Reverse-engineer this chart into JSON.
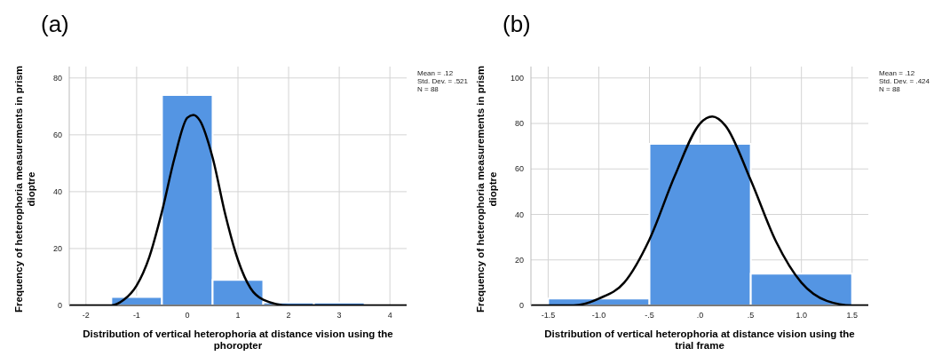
{
  "chart_data": [
    {
      "type": "histogram",
      "title": "(a)",
      "xlabel": "Distribution of vertical heterophoria at distance vision using the phoropter",
      "ylabel": "Frequency of heterophoria measurements in prism dioptre",
      "series": [
        {
          "bins": [
            -1.5,
            -0.5,
            0.5,
            1.5,
            2.5,
            3.5
          ],
          "values": [
            3,
            74,
            9,
            1,
            1
          ],
          "color": "#5495e3"
        },
        {
          "type": "line",
          "color": "#000000",
          "x": [
            -2.33,
            -1.5,
            -1.25,
            -1,
            -0.75,
            -0.5,
            -0.25,
            0,
            0.12,
            0.25,
            0.5,
            0.75,
            1,
            1.25,
            1.5,
            2,
            4.33
          ],
          "values": [
            0,
            0,
            2,
            7,
            17,
            33,
            52,
            66,
            67,
            65,
            52,
            32,
            16,
            6,
            2,
            0,
            0
          ]
        }
      ],
      "xlim": [
        -2.33,
        4.33
      ],
      "xticks": [
        -2,
        -1,
        0,
        1,
        2,
        3,
        4
      ],
      "ylim": [
        0,
        84
      ],
      "yticks": [
        0,
        20,
        40,
        60,
        80
      ],
      "grid": true,
      "annotations": [
        "Mean = .12",
        "Std. Dev. = .521",
        "N = 88"
      ]
    },
    {
      "type": "histogram",
      "title": "(b)",
      "xlabel": "Distribution of vertical heterophoria at distance vision using the trial frame",
      "ylabel": "Frequency of heterophoria measurements in prism dioptre",
      "series": [
        {
          "bins": [
            -1.5,
            -0.5,
            0.5,
            1.5
          ],
          "values": [
            3,
            71,
            14
          ],
          "color": "#5495e3"
        },
        {
          "type": "line",
          "color": "#000000",
          "x": [
            -1.67,
            -1.5,
            -1.25,
            -1,
            -0.75,
            -0.5,
            -0.25,
            0,
            0.12,
            0.25,
            0.5,
            0.75,
            1,
            1.25,
            1.5,
            1.66
          ],
          "values": [
            0,
            0,
            0,
            3,
            10,
            29,
            57,
            80,
            83,
            79,
            55,
            28,
            10,
            2,
            0,
            0
          ]
        }
      ],
      "xlim": [
        -1.67,
        1.66
      ],
      "xticks": [
        {
          "value": -1.5,
          "label": "-1.5"
        },
        {
          "value": -1,
          "label": "-1.0"
        },
        {
          "value": -0.5,
          "label": "-.5"
        },
        {
          "value": 0,
          "label": ".0"
        },
        {
          "value": 0.5,
          "label": ".5"
        },
        {
          "value": 1,
          "label": "1.0"
        },
        {
          "value": 1.5,
          "label": "1.5"
        }
      ],
      "ylim": [
        0,
        105
      ],
      "yticks": [
        0,
        20,
        40,
        60,
        80,
        100
      ],
      "grid": true,
      "annotations": [
        "Mean = .12",
        "Std. Dev. = .424",
        "N = 88"
      ]
    }
  ]
}
